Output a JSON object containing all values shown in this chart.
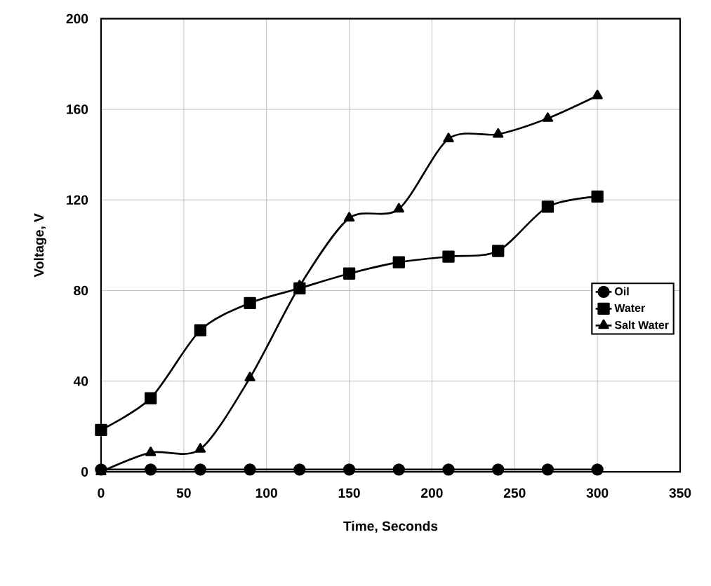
{
  "chart_data": {
    "type": "line",
    "xlabel": "Time, Seconds",
    "ylabel": "Voltage, V",
    "x": [
      0,
      30,
      60,
      90,
      120,
      150,
      180,
      210,
      240,
      270,
      300
    ],
    "series": [
      {
        "name": "Oil",
        "color": "#000000",
        "marker": "circle",
        "values": [
          1,
          1,
          1,
          1,
          1,
          1,
          1,
          1,
          1,
          1,
          1
        ]
      },
      {
        "name": "Water",
        "color": "#000000",
        "marker": "square",
        "values": [
          18.5,
          32.5,
          62.5,
          74.5,
          81,
          87.5,
          92.5,
          95,
          97.5,
          117,
          121.5
        ]
      },
      {
        "name": "Salt Water",
        "color": "#000000",
        "marker": "triangle",
        "values": [
          0,
          8.5,
          10,
          41.5,
          82,
          112,
          116,
          147,
          149,
          156,
          166
        ]
      }
    ],
    "xlim": [
      0,
      350
    ],
    "xticks": [
      0,
      50,
      100,
      150,
      200,
      250,
      300,
      350
    ],
    "ylim": [
      0,
      200
    ],
    "yticks": [
      0,
      40,
      80,
      120,
      160,
      200
    ],
    "grid": true,
    "legend": "right",
    "line_style": "solid"
  }
}
